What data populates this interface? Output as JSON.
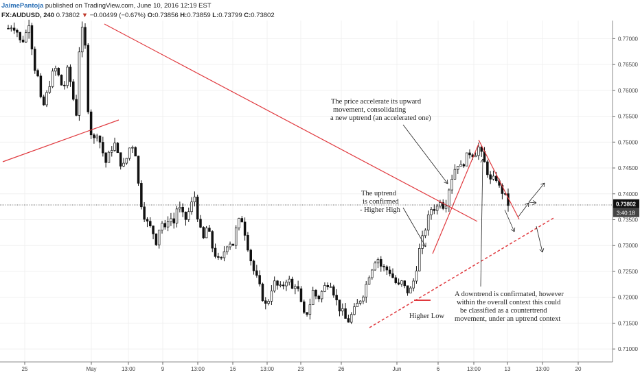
{
  "header": {
    "author": "JaimePantoja",
    "published": "published on TradingView.com, June 10, 2016 12:19 EST",
    "symbol": "FX:AUDUSD, 240",
    "price": "0.73802",
    "arrow": "▼",
    "change": "−0.00499 (−0.67%)",
    "open_label": "O:",
    "open": "0.73856",
    "high_label": "H:",
    "high": "0.73859",
    "low_label": "L:",
    "low": "0.73799",
    "close_label": "C:",
    "close": "0.73802"
  },
  "colors": {
    "trendline": "#e0393e",
    "candle": "#111111",
    "price_tag": "#111111",
    "grid": "#f0f0f0"
  },
  "chart_data": {
    "type": "candlestick",
    "title": "",
    "xlabel": "",
    "ylabel": "",
    "ylim": [
      0.7075,
      0.7735
    ],
    "y_ticks": [
      "0.77000",
      "0.76500",
      "0.76000",
      "0.75500",
      "0.75000",
      "0.74500",
      "0.74000",
      "0.73500",
      "0.73000",
      "0.72500",
      "0.72000",
      "0.71500",
      "0.71000"
    ],
    "x_ticks": [
      "25",
      "May",
      "13:00",
      "9",
      "13:00",
      "16",
      "13:00",
      "23",
      "26",
      "Jun",
      "6",
      "13:00",
      "13",
      "13:00",
      "20"
    ],
    "last_price": "0.73802",
    "countdown": "3:40:18",
    "close_path": [
      [
        0.772,
        0.7726,
        0.7716,
        0.769,
        0.7705,
        0.7735,
        0.765,
        0.7625,
        0.756,
        0.759,
        0.762,
        0.7645,
        0.7625,
        0.76,
        0.764,
        0.7605,
        0.7545,
        0.772,
        0.771
      ],
      [
        0.754,
        0.75,
        0.752,
        0.749,
        0.746,
        0.748,
        0.75,
        0.747,
        0.745,
        0.747,
        0.75,
        0.748,
        0.7395,
        0.736,
        0.734,
        0.733,
        0.7305,
        0.735,
        0.733
      ],
      [
        0.736,
        0.734,
        0.738,
        0.736,
        0.735,
        0.7375,
        0.7395,
        0.734,
        0.731,
        0.734,
        0.73,
        0.728,
        0.7265,
        0.729,
        0.731,
        0.73,
        0.734,
        0.7355,
        0.732
      ],
      [
        0.728,
        0.725,
        0.723,
        0.72,
        0.718,
        0.7215,
        0.723,
        0.7215,
        0.7225,
        0.724,
        0.7215,
        0.723,
        0.719,
        0.716,
        0.718,
        0.7215,
        0.7195,
        0.721,
        0.7225
      ],
      [
        0.723,
        0.7205,
        0.718,
        0.717,
        0.715,
        0.7165,
        0.718,
        0.7195,
        0.721,
        0.724,
        0.726,
        0.728,
        0.726,
        0.7255,
        0.725,
        0.7235,
        0.722,
        0.723,
        0.721
      ],
      [
        0.7215,
        0.724,
        0.729,
        0.732,
        0.735,
        0.7375,
        0.737,
        0.739,
        0.737,
        0.741,
        0.744,
        0.746,
        0.745,
        0.747,
        0.748,
        0.7475,
        0.749,
        0.747,
        0.7445
      ],
      [
        0.742,
        0.7435,
        0.741,
        0.74,
        0.738
      ]
    ]
  },
  "annotations": [
    [
      "The price accelerate its upward",
      "movement, consolidating",
      "a new uptrend (an accelerated one)"
    ],
    [
      "The uptrend",
      "is confirmed",
      "- Higher High"
    ],
    [
      "A downtrend is confirmated, however",
      "within the overall context this could",
      "be classified as a countertrend",
      "movement, under an uptrend context"
    ],
    [
      "Higher Low"
    ]
  ]
}
